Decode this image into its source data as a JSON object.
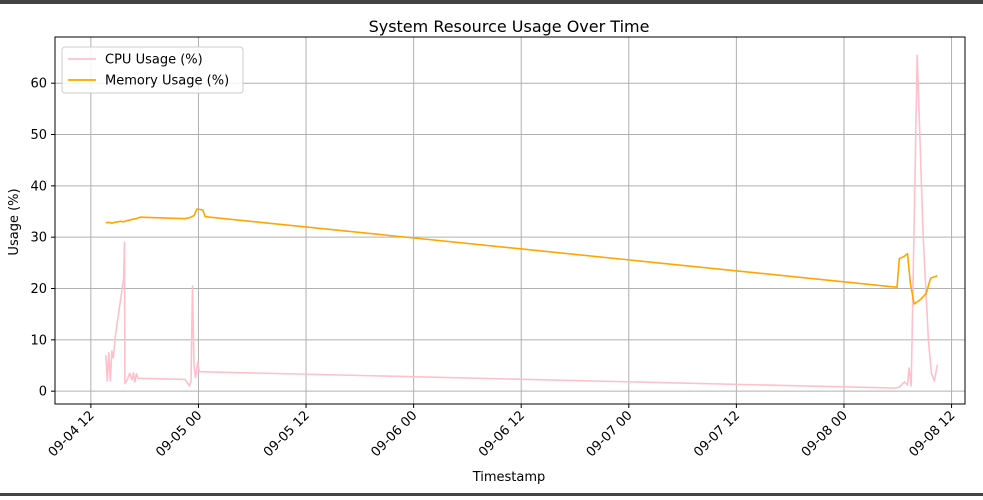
{
  "chart_data": {
    "type": "line",
    "title": "System Resource Usage Over Time",
    "xlabel": "Timestamp",
    "ylabel": "Usage (%)",
    "x_axis": {
      "kind": "datetime",
      "range": [
        "2024-09-04 08:00",
        "2024-09-08 13:30"
      ],
      "ticks": [
        {
          "t": "2024-09-04 12:00",
          "label": "09-04 12"
        },
        {
          "t": "2024-09-05 00:00",
          "label": "09-05 00"
        },
        {
          "t": "2024-09-05 12:00",
          "label": "09-05 12"
        },
        {
          "t": "2024-09-06 00:00",
          "label": "09-06 00"
        },
        {
          "t": "2024-09-06 12:00",
          "label": "09-06 12"
        },
        {
          "t": "2024-09-07 00:00",
          "label": "09-07 00"
        },
        {
          "t": "2024-09-07 12:00",
          "label": "09-07 12"
        },
        {
          "t": "2024-09-08 00:00",
          "label": "09-08 00"
        },
        {
          "t": "2024-09-08 12:00",
          "label": "09-08 12"
        }
      ]
    },
    "y_axis": {
      "range": [
        -2.5,
        69
      ],
      "ticks": [
        0,
        10,
        20,
        30,
        40,
        50,
        60
      ]
    },
    "grid": true,
    "legend": {
      "placement": "top-left"
    },
    "series": [
      {
        "name": "CPU Usage (%)",
        "color": "#ffc0cb",
        "points": [
          [
            "2024-09-04 13:40",
            7.0
          ],
          [
            "2024-09-04 13:50",
            2.0
          ],
          [
            "2024-09-04 14:00",
            7.5
          ],
          [
            "2024-09-04 14:10",
            2.0
          ],
          [
            "2024-09-04 14:20",
            7.8
          ],
          [
            "2024-09-04 14:30",
            6.5
          ],
          [
            "2024-09-04 14:45",
            11.0
          ],
          [
            "2024-09-04 15:30",
            20.0
          ],
          [
            "2024-09-04 15:40",
            22.0
          ],
          [
            "2024-09-04 15:45",
            29.0
          ],
          [
            "2024-09-04 15:48",
            1.5
          ],
          [
            "2024-09-04 16:00",
            2.0
          ],
          [
            "2024-09-04 16:20",
            3.5
          ],
          [
            "2024-09-04 16:35",
            2.2
          ],
          [
            "2024-09-04 16:45",
            3.6
          ],
          [
            "2024-09-04 16:55",
            1.8
          ],
          [
            "2024-09-04 17:05",
            3.4
          ],
          [
            "2024-09-04 17:15",
            2.5
          ],
          [
            "2024-09-04 22:30",
            2.3
          ],
          [
            "2024-09-04 23:00",
            1.0
          ],
          [
            "2024-09-04 23:10",
            2.0
          ],
          [
            "2024-09-04 23:20",
            20.5
          ],
          [
            "2024-09-04 23:30",
            5.0
          ],
          [
            "2024-09-04 23:40",
            2.6
          ],
          [
            "2024-09-04 23:55",
            5.6
          ],
          [
            "2024-09-05 00:05",
            3.8
          ],
          [
            "2024-09-08 05:40",
            0.6
          ],
          [
            "2024-09-08 06:10",
            0.8
          ],
          [
            "2024-09-08 06:45",
            1.8
          ],
          [
            "2024-09-08 07:05",
            1.2
          ],
          [
            "2024-09-08 07:15",
            4.5
          ],
          [
            "2024-09-08 07:30",
            1.0
          ],
          [
            "2024-09-08 08:10",
            65.5
          ],
          [
            "2024-09-08 08:50",
            30.0
          ],
          [
            "2024-09-08 09:25",
            10.0
          ],
          [
            "2024-09-08 09:45",
            3.5
          ],
          [
            "2024-09-08 10:05",
            2.0
          ],
          [
            "2024-09-08 10:25",
            5.2
          ]
        ]
      },
      {
        "name": "Memory Usage (%)",
        "color": "#ffa500",
        "points": [
          [
            "2024-09-04 13:40",
            32.8
          ],
          [
            "2024-09-04 14:00",
            32.9
          ],
          [
            "2024-09-04 14:20",
            32.7
          ],
          [
            "2024-09-04 14:40",
            32.9
          ],
          [
            "2024-09-04 15:00",
            33.0
          ],
          [
            "2024-09-04 15:20",
            33.1
          ],
          [
            "2024-09-04 15:40",
            33.0
          ],
          [
            "2024-09-04 16:00",
            33.2
          ],
          [
            "2024-09-04 16:30",
            33.4
          ],
          [
            "2024-09-04 17:00",
            33.6
          ],
          [
            "2024-09-04 17:30",
            33.9
          ],
          [
            "2024-09-04 22:30",
            33.6
          ],
          [
            "2024-09-04 23:00",
            33.8
          ],
          [
            "2024-09-04 23:30",
            34.2
          ],
          [
            "2024-09-04 23:50",
            35.5
          ],
          [
            "2024-09-05 00:30",
            35.3
          ],
          [
            "2024-09-05 00:45",
            34.0
          ],
          [
            "2024-09-08 05:40",
            20.3
          ],
          [
            "2024-09-08 05:55",
            20.2
          ],
          [
            "2024-09-08 06:10",
            25.8
          ],
          [
            "2024-09-08 06:45",
            26.3
          ],
          [
            "2024-09-08 07:05",
            26.8
          ],
          [
            "2024-09-08 07:25",
            20.8
          ],
          [
            "2024-09-08 07:50",
            17.0
          ],
          [
            "2024-09-08 08:30",
            17.8
          ],
          [
            "2024-09-08 09:10",
            19.0
          ],
          [
            "2024-09-08 09:40",
            22.0
          ],
          [
            "2024-09-08 10:25",
            22.5
          ]
        ]
      }
    ]
  }
}
